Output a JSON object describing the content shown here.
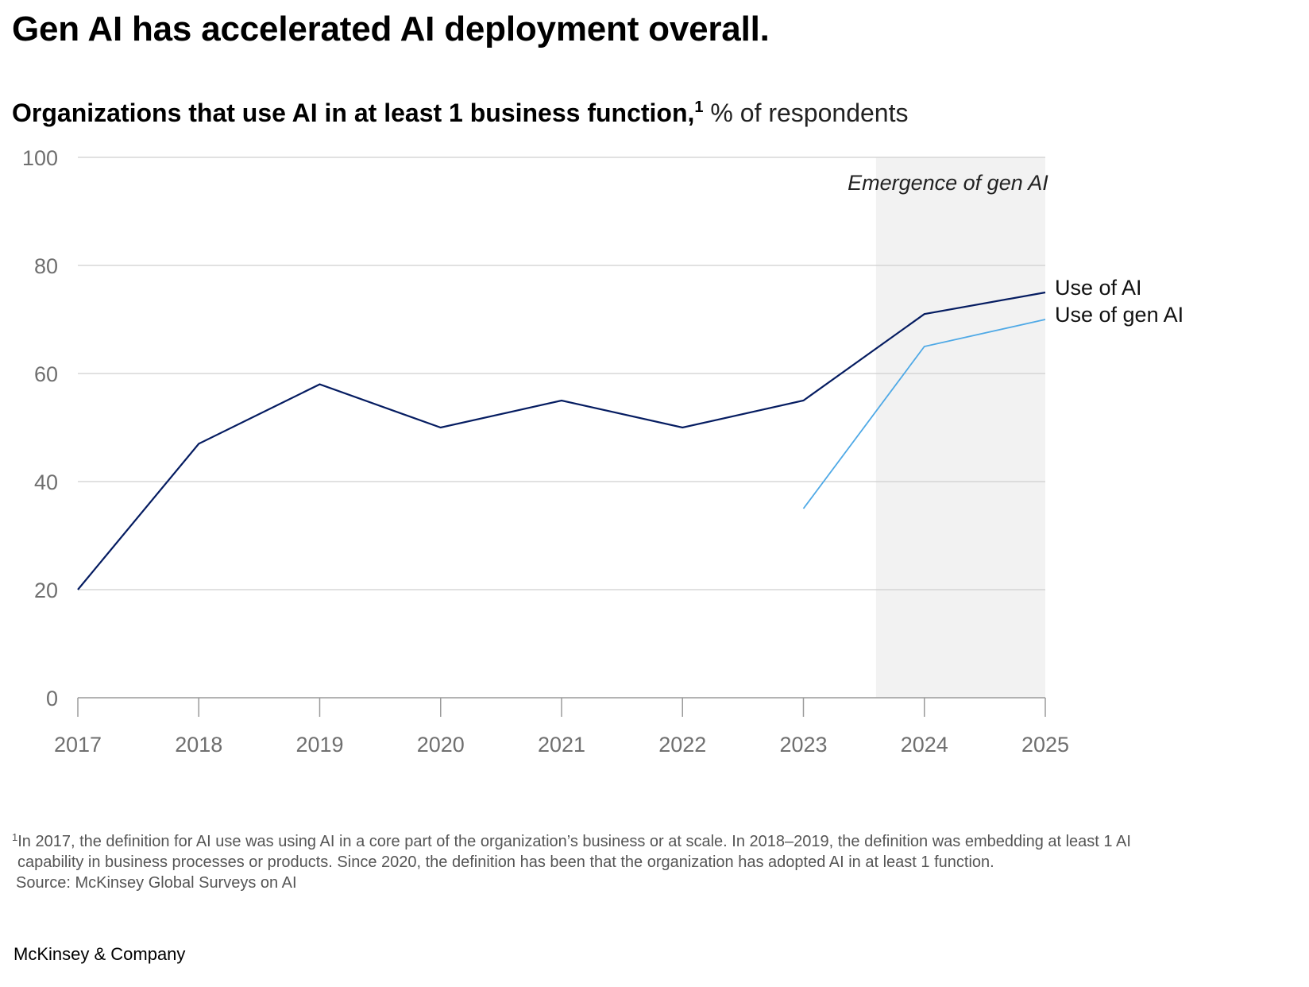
{
  "header": {
    "title": "Gen AI has accelerated AI deployment overall.",
    "subtitle_bold": "Organizations that use AI in at least 1 business function,",
    "subtitle_sup": "1",
    "subtitle_normal": "% of respondents"
  },
  "chart_data": {
    "type": "line",
    "title": "Organizations that use AI in at least 1 business function, % of respondents",
    "x": [
      "2017",
      "2018",
      "2019",
      "2020",
      "2021",
      "2022",
      "2023",
      "2024",
      "2025"
    ],
    "ylim": [
      0,
      100
    ],
    "yticks": [
      0,
      20,
      40,
      60,
      80,
      100
    ],
    "grid": true,
    "series": [
      {
        "name": "Use of AI",
        "color": "#051C61",
        "values": [
          20,
          47,
          58,
          50,
          55,
          50,
          55,
          71,
          75
        ]
      },
      {
        "name": "Use of gen AI",
        "color": "#4FA9E6",
        "values": [
          null,
          null,
          null,
          null,
          null,
          null,
          35,
          65,
          70
        ]
      }
    ],
    "shaded_region": {
      "label": "Emergence of gen AI",
      "from_x": 6.6,
      "to_x": 8,
      "color": "#F2F2F2"
    }
  },
  "footnote": {
    "mark": "1",
    "line1": "In 2017, the definition for AI use was using AI in a core part of the organization’s business or at scale. In 2018–2019, the definition was embedding at least 1 AI",
    "line2": "capability in business processes or products. Since 2020, the definition has been that the organization has adopted AI in at least 1 function.",
    "source": "Source: McKinsey Global Surveys on AI"
  },
  "brand": "McKinsey & Company"
}
